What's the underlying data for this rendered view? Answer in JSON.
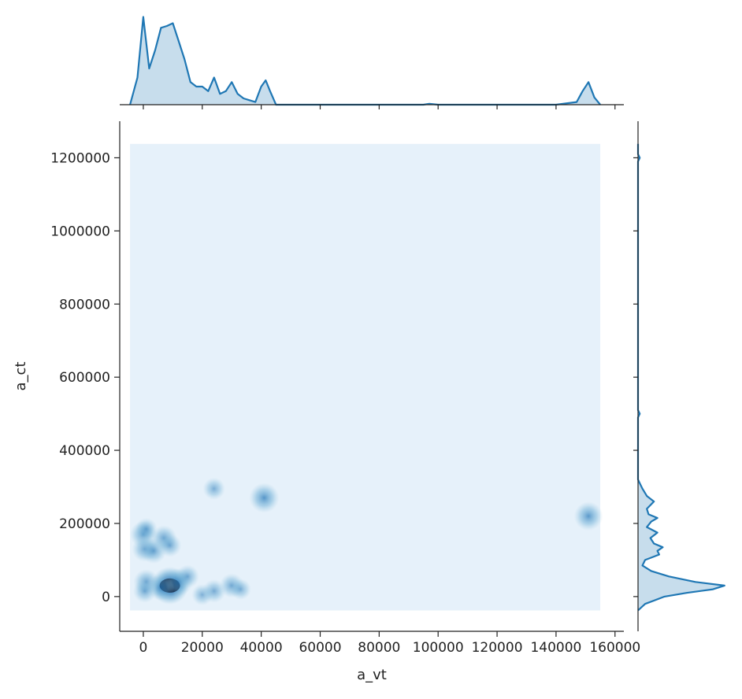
{
  "chart_data": {
    "type": "kde-joint",
    "xlabel": "a_vt",
    "ylabel": "a_ct",
    "xlim": [
      -8000,
      163000
    ],
    "ylim": [
      -95000,
      1300000
    ],
    "xticks": [
      0,
      20000,
      40000,
      60000,
      80000,
      100000,
      120000,
      140000,
      160000
    ],
    "yticks": [
      0,
      200000,
      400000,
      600000,
      800000,
      1000000,
      1200000
    ],
    "density_region": {
      "x": [
        -4500,
        155000
      ],
      "y": [
        -38000,
        1238000
      ]
    },
    "density_clusters": [
      {
        "x": 9000,
        "y": 30000,
        "level": 1.0
      },
      {
        "x": 12000,
        "y": 40000,
        "level": 0.55
      },
      {
        "x": 15000,
        "y": 55000,
        "level": 0.35
      },
      {
        "x": 6000,
        "y": 25000,
        "level": 0.5
      },
      {
        "x": 1000,
        "y": 40000,
        "level": 0.45
      },
      {
        "x": 500,
        "y": 15000,
        "level": 0.35
      },
      {
        "x": 20000,
        "y": 5000,
        "level": 0.25
      },
      {
        "x": 24000,
        "y": 15000,
        "level": 0.35
      },
      {
        "x": 30000,
        "y": 30000,
        "level": 0.4
      },
      {
        "x": 33000,
        "y": 20000,
        "level": 0.25
      },
      {
        "x": 0,
        "y": 170000,
        "level": 0.5
      },
      {
        "x": 1000,
        "y": 185000,
        "level": 0.3
      },
      {
        "x": 500,
        "y": 130000,
        "level": 0.45
      },
      {
        "x": 3500,
        "y": 125000,
        "level": 0.45
      },
      {
        "x": 7000,
        "y": 160000,
        "level": 0.45
      },
      {
        "x": 9000,
        "y": 140000,
        "level": 0.35
      },
      {
        "x": 24000,
        "y": 295000,
        "level": 0.3
      },
      {
        "x": 41000,
        "y": 270000,
        "level": 0.65
      },
      {
        "x": 151000,
        "y": 220000,
        "level": 0.6
      }
    ],
    "x_marginal": {
      "x": [
        -4500,
        -2000,
        0,
        2000,
        4000,
        6000,
        8000,
        10000,
        12000,
        14000,
        16000,
        18000,
        20000,
        22000,
        24000,
        26000,
        28000,
        30000,
        32000,
        34000,
        36000,
        38000,
        40000,
        41500,
        43000,
        45000,
        50000,
        60000,
        80000,
        95000,
        97000,
        100000,
        120000,
        140000,
        147000,
        149000,
        151000,
        153000,
        155000
      ],
      "density": [
        0,
        0.3,
        0.97,
        0.4,
        0.6,
        0.85,
        0.87,
        0.9,
        0.7,
        0.5,
        0.25,
        0.2,
        0.2,
        0.15,
        0.3,
        0.12,
        0.15,
        0.25,
        0.12,
        0.07,
        0.05,
        0.03,
        0.2,
        0.27,
        0.15,
        0.0,
        0.0,
        0.0,
        0.0,
        0.0,
        0.01,
        0.0,
        0.0,
        0.0,
        0.03,
        0.15,
        0.25,
        0.08,
        0
      ]
    },
    "y_marginal": {
      "y": [
        -38000,
        -20000,
        0,
        10000,
        20000,
        30000,
        40000,
        55000,
        70000,
        85000,
        100000,
        115000,
        125000,
        135000,
        145000,
        160000,
        175000,
        190000,
        205000,
        215000,
        225000,
        240000,
        260000,
        275000,
        295000,
        310000,
        320000,
        400000,
        490000,
        500000,
        510000,
        700000,
        1190000,
        1200000,
        1210000,
        1238000
      ],
      "density": [
        0,
        0.08,
        0.3,
        0.55,
        0.85,
        0.98,
        0.65,
        0.35,
        0.15,
        0.05,
        0.08,
        0.24,
        0.22,
        0.28,
        0.18,
        0.14,
        0.22,
        0.1,
        0.15,
        0.22,
        0.12,
        0.1,
        0.18,
        0.1,
        0.05,
        0.02,
        0,
        0,
        0,
        0.02,
        0,
        0,
        0,
        0.02,
        0,
        0
      ]
    }
  }
}
